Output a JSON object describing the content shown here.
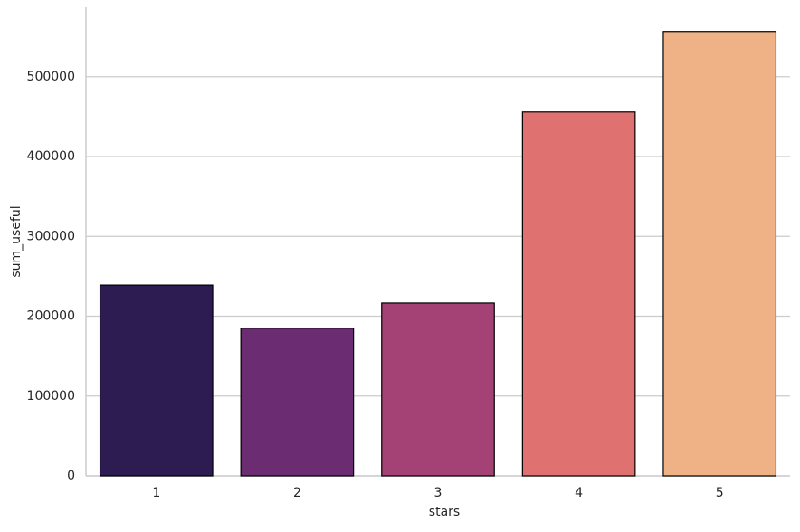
{
  "chart_data": {
    "type": "bar",
    "x_label": "stars",
    "y_label": "sum_useful",
    "categories": [
      "1",
      "2",
      "3",
      "4",
      "5"
    ],
    "values": [
      239000,
      185000,
      216500,
      455800,
      556700
    ],
    "colors": [
      "#2d1c52",
      "#6b2c72",
      "#a44275",
      "#df7270",
      "#efb286"
    ],
    "edge_color": "#000000",
    "ylim": [
      0,
      587000
    ],
    "yticks": [
      0,
      100000,
      200000,
      300000,
      400000,
      500000
    ],
    "grid": true
  }
}
